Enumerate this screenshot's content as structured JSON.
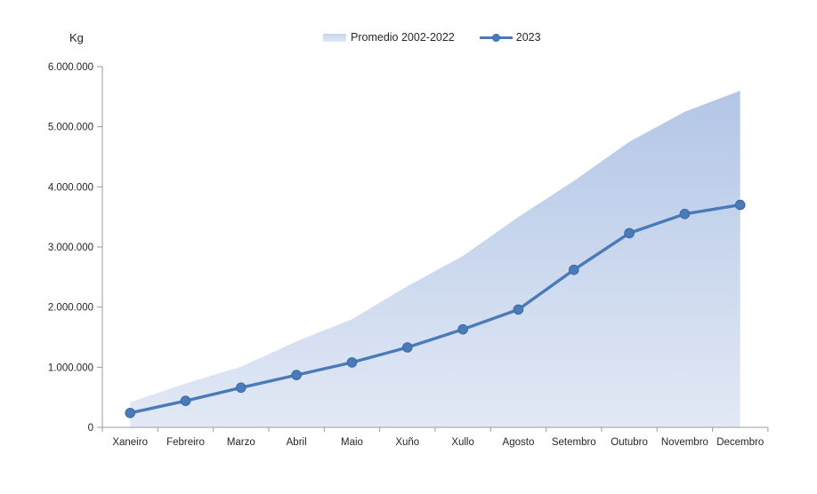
{
  "chart_data": {
    "type": "area",
    "title": "",
    "ylabel": "Kg",
    "xlabel": "",
    "categories": [
      "Xaneiro",
      "Febreiro",
      "Marzo",
      "Abril",
      "Maio",
      "Xuño",
      "Xullo",
      "Agosto",
      "Setembro",
      "Outubro",
      "Novembro",
      "Decembro"
    ],
    "series": [
      {
        "name": "Promedio 2002-2022",
        "type": "area",
        "values": [
          420000,
          730000,
          1010000,
          1430000,
          1800000,
          2350000,
          2850000,
          3500000,
          4100000,
          4750000,
          5250000,
          5600000
        ]
      },
      {
        "name": "2023",
        "type": "line",
        "values": [
          240000,
          440000,
          660000,
          870000,
          1080000,
          1330000,
          1630000,
          1960000,
          2620000,
          3230000,
          3550000,
          3700000
        ]
      }
    ],
    "ylim": [
      0,
      6000000
    ],
    "ytick_step": 1000000,
    "ytick_labels": [
      "0",
      "1.000.000",
      "2.000.000",
      "3.000.000",
      "4.000.000",
      "5.000.000",
      "6.000.000"
    ],
    "grid": false,
    "legend_position": "top-center",
    "colors": {
      "line": "#4a7ab8",
      "marker_fill": "#4a7ab8",
      "marker_stroke": "#3a6aa5",
      "area_gradient_top": "#b3c6e7",
      "area_gradient_bottom": "#e2e9f5",
      "legend_swatch_top": "#c9d6ee",
      "legend_swatch_bottom": "#e0e8f5",
      "axis": "#9b9b9b",
      "text": "#262626"
    }
  }
}
